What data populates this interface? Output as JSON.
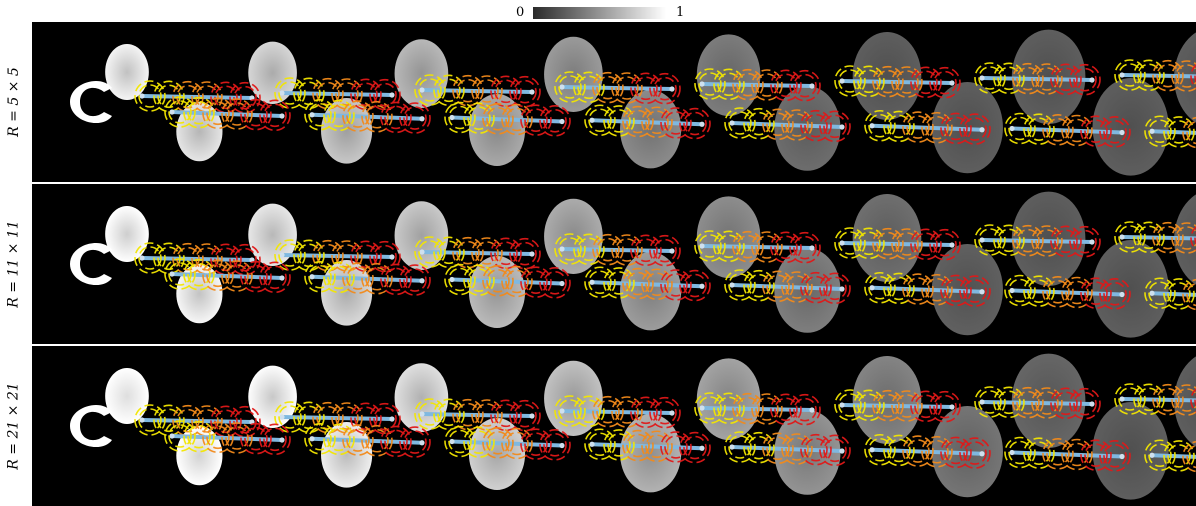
{
  "colorbar": {
    "min_label": "0",
    "max_label": "1",
    "colormap": "gray",
    "from_color": "#2a2a2a",
    "to_color": "#ffffff"
  },
  "panels": [
    {
      "label": "R = 5 × 5",
      "top": 22,
      "height": 160,
      "blob_intensity_boost": 0.0
    },
    {
      "label": "R = 11 × 11",
      "top": 184,
      "height": 160,
      "blob_intensity_boost": 0.08
    },
    {
      "label": "R = 21 × 21",
      "top": 346,
      "height": 160,
      "blob_intensity_boost": 0.18
    }
  ],
  "colors": {
    "background": "#000000",
    "path": "#7fb8e0",
    "node": "#cfe0ee",
    "ring_yellow": "#f2e600",
    "ring_orange": "#f28a1a",
    "ring_red": "#e01818"
  }
}
